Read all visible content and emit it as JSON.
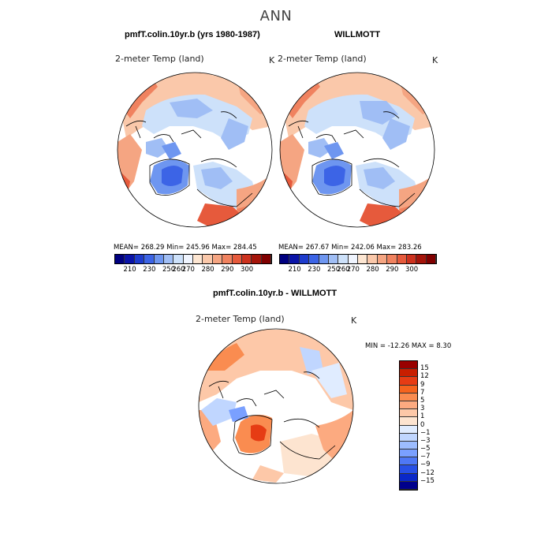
{
  "title": "ANN",
  "panels": [
    {
      "title": "pmfT.colin.10yr.b (yrs 1980-1987)",
      "variable": "2-meter Temp (land)",
      "units": "K",
      "stats": "MEAN= 268.29   Min= 245.96   Max= 284.45"
    },
    {
      "title": "WILLMOTT",
      "variable": "2-meter Temp (land)",
      "units": "K",
      "stats": "MEAN= 267.67   Min= 242.06   Max= 283.26"
    }
  ],
  "shared_colorbar": {
    "labels": [
      "210",
      "230",
      "250",
      "260",
      "270",
      "280",
      "290",
      "300"
    ],
    "colors": [
      "#000080",
      "#0a14a8",
      "#1e3ccd",
      "#3c64e6",
      "#6e96f0",
      "#a0bef5",
      "#cde1fa",
      "#f0f5ff",
      "#fde6d2",
      "#fac8aa",
      "#f5a582",
      "#f0825f",
      "#e65a3c",
      "#cd321e",
      "#a5140a",
      "#800000"
    ]
  },
  "difference": {
    "title": "pmfT.colin.10yr.b - WILLMOTT",
    "variable": "2-meter Temp (land)",
    "units": "K",
    "minmax": "MIN = -12.26  MAX =    8.30",
    "colorbar_labels": [
      "15",
      "12",
      "9",
      "7",
      "5",
      "3",
      "1",
      "0",
      "−1",
      "−3",
      "−5",
      "−7",
      "−9",
      "−12",
      "−15"
    ],
    "colorbar_colors": [
      "#990000",
      "#c81e00",
      "#e63c14",
      "#f5641e",
      "#fa8c50",
      "#fcaa80",
      "#fdc8a8",
      "#fde4d0",
      "#e0ecff",
      "#c0d6ff",
      "#9cbcff",
      "#7aa0ff",
      "#4f78f5",
      "#2850e6",
      "#0a28c8",
      "#00008c"
    ]
  }
}
